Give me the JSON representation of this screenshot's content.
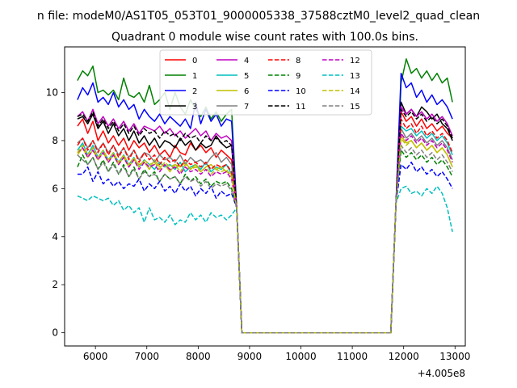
{
  "figure": {
    "suptitle": "n file: modeM0/AS1T05_053T01_9000005338_37588cztM0_level2_quad_clean",
    "title": "Quadrant 0 module wise count rates with 100.0s bins."
  },
  "chart_data": {
    "type": "line",
    "title": "Quadrant 0 module wise count rates with 100.0s bins.",
    "xlabel": "",
    "ylabel": "",
    "x_offset_label": "+4.005e8",
    "x_offset": 400500000,
    "xlim": [
      5400,
      13200
    ],
    "ylim": [
      -0.55,
      11.9
    ],
    "xticks": [
      6000,
      7000,
      8000,
      9000,
      10000,
      11000,
      12000,
      13000
    ],
    "xtick_labels": [
      "6000",
      "7000",
      "8000",
      "9000",
      "10000",
      "11000",
      "12000",
      "13000"
    ],
    "yticks": [
      0,
      2,
      4,
      6,
      8,
      10
    ],
    "ytick_labels": [
      "0",
      "2",
      "4",
      "6",
      "8",
      "10"
    ],
    "grid": false,
    "legend_position": "top-center",
    "legend_columns": 4,
    "segment_starts": [
      5650,
      11950
    ],
    "bin_width": 100,
    "gap_points": [
      [
        8750,
        5.2
      ],
      [
        8850,
        0
      ],
      [
        9850,
        0
      ],
      [
        10850,
        0
      ],
      [
        11750,
        0
      ],
      [
        11850,
        5.4
      ]
    ],
    "series": [
      {
        "name": "0",
        "color": "#ff0000",
        "dash": "solid",
        "seg1": [
          8.6,
          8.9,
          8.3,
          8.8,
          8.0,
          8.4,
          7.9,
          8.2,
          7.8,
          8.1,
          7.6,
          8.0,
          7.7,
          7.9,
          7.5,
          7.8,
          7.4,
          7.6,
          7.3,
          7.8,
          7.5,
          7.4,
          7.9,
          7.6,
          7.8,
          7.5,
          7.7,
          7.3,
          7.6,
          7.4,
          7.2
        ],
        "seg2": [
          9.2,
          8.8,
          9.0,
          8.6,
          8.9,
          8.5,
          8.7,
          8.4,
          8.6,
          8.3,
          8.1
        ]
      },
      {
        "name": "1",
        "color": "#008000",
        "dash": "solid",
        "seg1": [
          10.5,
          10.9,
          10.7,
          11.1,
          10.0,
          10.1,
          9.9,
          10.1,
          9.7,
          10.6,
          9.9,
          9.8,
          10.0,
          9.6,
          10.3,
          9.5,
          9.7,
          10.0,
          9.3,
          10.0,
          9.4,
          9.1,
          9.7,
          9.3,
          9.0,
          9.4,
          8.9,
          9.2,
          8.8,
          9.1,
          9.3
        ],
        "seg2": [
          10.4,
          11.4,
          10.8,
          11.0,
          10.6,
          10.9,
          10.5,
          10.8,
          10.4,
          10.6,
          9.6
        ]
      },
      {
        "name": "2",
        "color": "#0000ff",
        "dash": "solid",
        "seg1": [
          9.7,
          10.2,
          9.9,
          10.4,
          9.6,
          9.8,
          9.5,
          10.0,
          9.4,
          9.7,
          9.3,
          9.5,
          8.9,
          9.3,
          9.0,
          8.8,
          9.1,
          8.7,
          9.0,
          8.8,
          8.6,
          8.9,
          8.5,
          9.6,
          8.7,
          9.3,
          8.8,
          9.1,
          8.6,
          8.9,
          8.8
        ],
        "seg2": [
          10.8,
          10.2,
          10.4,
          9.8,
          10.1,
          9.6,
          9.9,
          9.5,
          9.7,
          9.4,
          8.9
        ]
      },
      {
        "name": "3",
        "color": "#000000",
        "dash": "solid",
        "seg1": [
          8.9,
          9.0,
          8.7,
          9.1,
          8.5,
          8.8,
          8.3,
          8.7,
          8.2,
          8.5,
          8.0,
          8.4,
          7.9,
          8.2,
          7.8,
          8.1,
          7.7,
          8.0,
          7.9,
          7.7,
          8.1,
          7.8,
          8.0,
          7.6,
          7.9,
          7.7,
          7.8,
          8.2,
          7.9,
          7.7,
          7.8
        ],
        "seg2": [
          9.6,
          9.1,
          9.3,
          9.0,
          9.4,
          9.2,
          8.9,
          9.1,
          8.7,
          8.5,
          8.0
        ]
      },
      {
        "name": "4",
        "color": "#c000c0",
        "dash": "solid",
        "seg1": [
          9.0,
          9.2,
          8.8,
          9.3,
          8.7,
          9.0,
          8.6,
          8.9,
          8.5,
          8.8,
          8.4,
          8.7,
          8.3,
          8.6,
          8.5,
          8.4,
          8.6,
          8.3,
          8.5,
          8.2,
          8.4,
          8.1,
          8.3,
          8.5,
          8.2,
          8.4,
          8.0,
          8.3,
          8.1,
          8.2,
          8.0
        ],
        "seg2": [
          9.4,
          9.1,
          9.3,
          9.0,
          9.2,
          8.9,
          9.1,
          8.8,
          9.0,
          8.7,
          8.2
        ]
      },
      {
        "name": "5",
        "color": "#00bfbf",
        "dash": "solid",
        "seg1": [
          7.6,
          7.9,
          7.4,
          7.8,
          7.3,
          7.6,
          7.2,
          7.5,
          7.1,
          7.4,
          7.0,
          7.3,
          6.9,
          7.2,
          7.0,
          6.8,
          7.1,
          6.9,
          7.0,
          6.8,
          7.1,
          6.7,
          6.9,
          7.0,
          6.8,
          7.1,
          6.7,
          6.9,
          6.8,
          7.0,
          6.6
        ],
        "seg2": [
          8.6,
          8.4,
          8.5,
          8.2,
          8.4,
          8.1,
          8.3,
          8.0,
          8.2,
          7.9,
          7.4
        ]
      },
      {
        "name": "6",
        "color": "#bfbf00",
        "dash": "solid",
        "seg1": [
          7.4,
          7.7,
          7.3,
          7.6,
          7.2,
          7.5,
          7.1,
          7.4,
          7.0,
          7.3,
          6.9,
          7.2,
          7.0,
          7.1,
          6.8,
          7.2,
          6.9,
          7.0,
          6.7,
          7.0,
          6.9,
          7.1,
          6.8,
          7.0,
          6.7,
          6.9,
          7.0,
          6.8,
          6.9,
          6.7,
          6.6
        ],
        "seg2": [
          8.2,
          7.9,
          8.0,
          7.7,
          7.9,
          7.6,
          7.8,
          7.5,
          7.7,
          7.4,
          6.9
        ]
      },
      {
        "name": "7",
        "color": "#808080",
        "dash": "solid",
        "seg1": [
          7.9,
          8.1,
          7.7,
          8.0,
          7.6,
          7.9,
          7.5,
          7.8,
          7.4,
          7.7,
          7.3,
          7.6,
          7.2,
          7.5,
          7.4,
          7.1,
          7.4,
          7.2,
          7.3,
          7.1,
          7.4,
          7.0,
          7.3,
          7.1,
          7.2,
          7.0,
          7.3,
          7.5,
          7.1,
          7.3,
          7.0
        ],
        "seg2": [
          8.5,
          8.1,
          8.3,
          8.0,
          8.2,
          7.9,
          8.1,
          7.8,
          8.0,
          7.7,
          7.2
        ]
      },
      {
        "name": "8",
        "color": "#ff0000",
        "dash": "dashed",
        "seg1": [
          7.8,
          8.1,
          7.6,
          8.0,
          7.5,
          7.9,
          7.4,
          7.8,
          7.3,
          7.7,
          7.2,
          7.6,
          7.1,
          7.5,
          7.2,
          7.4,
          7.0,
          7.3,
          7.1,
          7.2,
          6.9,
          7.2,
          7.0,
          7.1,
          6.9,
          7.1,
          6.8,
          7.0,
          6.9,
          7.0,
          6.7
        ],
        "seg2": [
          8.9,
          8.5,
          8.7,
          8.3,
          8.6,
          8.2,
          8.4,
          8.1,
          8.3,
          8.0,
          7.5
        ]
      },
      {
        "name": "9",
        "color": "#008000",
        "dash": "dashed",
        "seg1": [
          6.9,
          7.4,
          7.0,
          7.3,
          6.8,
          7.2,
          6.7,
          7.1,
          6.6,
          7.0,
          6.5,
          6.9,
          6.4,
          6.8,
          6.5,
          6.7,
          6.3,
          6.6,
          6.4,
          6.5,
          6.2,
          6.6,
          6.3,
          6.5,
          6.2,
          6.4,
          6.1,
          6.3,
          6.2,
          6.3,
          6.0
        ],
        "seg2": [
          7.6,
          7.3,
          7.5,
          7.2,
          7.4,
          7.1,
          7.3,
          7.0,
          7.2,
          6.9,
          6.5
        ]
      },
      {
        "name": "10",
        "color": "#0000ff",
        "dash": "dashed",
        "seg1": [
          6.6,
          6.6,
          6.9,
          6.3,
          6.7,
          6.2,
          6.4,
          6.1,
          6.3,
          6.0,
          6.2,
          6.1,
          6.4,
          5.9,
          6.2,
          6.0,
          6.3,
          5.9,
          6.1,
          5.8,
          6.2,
          5.9,
          6.1,
          5.7,
          6.0,
          5.8,
          6.1,
          5.6,
          5.9,
          5.7,
          5.8
        ],
        "seg2": [
          7.0,
          6.8,
          7.1,
          6.7,
          6.9,
          6.6,
          6.8,
          6.5,
          6.7,
          6.4,
          6.0
        ]
      },
      {
        "name": "11",
        "color": "#000000",
        "dash": "dashed",
        "seg1": [
          9.0,
          9.1,
          8.8,
          9.2,
          8.6,
          8.9,
          8.5,
          8.8,
          8.4,
          8.7,
          8.3,
          8.6,
          8.2,
          8.5,
          8.3,
          8.4,
          8.1,
          8.4,
          8.2,
          8.3,
          8.0,
          8.3,
          8.1,
          8.2,
          7.9,
          8.2,
          8.0,
          8.1,
          7.9,
          8.0,
          7.8
        ],
        "seg2": [
          9.3,
          9.0,
          9.2,
          8.9,
          9.1,
          8.8,
          9.0,
          8.7,
          8.9,
          8.6,
          8.1
        ]
      },
      {
        "name": "12",
        "color": "#c000c0",
        "dash": "dashed",
        "seg1": [
          7.5,
          7.7,
          7.3,
          7.6,
          7.2,
          7.5,
          7.1,
          7.4,
          7.0,
          7.3,
          6.9,
          7.2,
          6.8,
          7.1,
          6.9,
          7.0,
          6.7,
          7.0,
          6.8,
          6.9,
          6.6,
          6.9,
          6.7,
          6.8,
          6.6,
          6.8,
          6.5,
          6.7,
          6.6,
          6.7,
          6.4
        ],
        "seg2": [
          8.3,
          8.0,
          8.2,
          7.9,
          8.1,
          7.8,
          8.0,
          7.7,
          7.9,
          7.6,
          7.1
        ]
      },
      {
        "name": "13",
        "color": "#00bfbf",
        "dash": "dashed",
        "seg1": [
          5.7,
          5.6,
          5.5,
          5.7,
          5.6,
          5.5,
          5.6,
          5.3,
          5.5,
          5.1,
          5.3,
          5.0,
          5.2,
          4.6,
          5.2,
          4.7,
          4.8,
          4.6,
          4.9,
          4.5,
          4.7,
          4.6,
          5.0,
          4.7,
          4.9,
          4.6,
          5.0,
          4.8,
          4.9,
          4.7,
          4.9
        ],
        "seg2": [
          6.0,
          6.1,
          5.8,
          5.9,
          5.7,
          6.0,
          5.8,
          6.1,
          5.8,
          5.2,
          4.2
        ]
      },
      {
        "name": "14",
        "color": "#bfbf00",
        "dash": "dashed",
        "seg1": [
          7.5,
          7.8,
          7.4,
          7.7,
          7.3,
          7.6,
          7.2,
          7.5,
          7.1,
          7.4,
          7.0,
          7.3,
          6.9,
          7.2,
          7.0,
          7.1,
          6.8,
          7.1,
          6.9,
          7.0,
          6.7,
          7.0,
          6.8,
          6.9,
          6.7,
          6.9,
          6.6,
          6.8,
          6.7,
          6.8,
          6.5
        ],
        "seg2": [
          8.1,
          7.8,
          8.0,
          7.7,
          7.9,
          7.6,
          7.8,
          7.5,
          7.7,
          7.4,
          6.9
        ]
      },
      {
        "name": "15",
        "color": "#808080",
        "dash": "dashed",
        "seg1": [
          7.4,
          7.2,
          7.0,
          7.3,
          6.8,
          7.1,
          6.7,
          7.0,
          6.6,
          6.9,
          6.5,
          6.8,
          6.4,
          6.7,
          6.5,
          6.6,
          6.3,
          6.6,
          6.4,
          6.5,
          6.2,
          6.5,
          6.3,
          6.4,
          6.1,
          6.3,
          6.0,
          6.2,
          6.1,
          6.2,
          5.9
        ],
        "seg2": [
          7.8,
          7.5,
          7.7,
          7.4,
          7.6,
          7.3,
          7.5,
          7.2,
          7.4,
          7.1,
          6.7
        ]
      }
    ]
  }
}
